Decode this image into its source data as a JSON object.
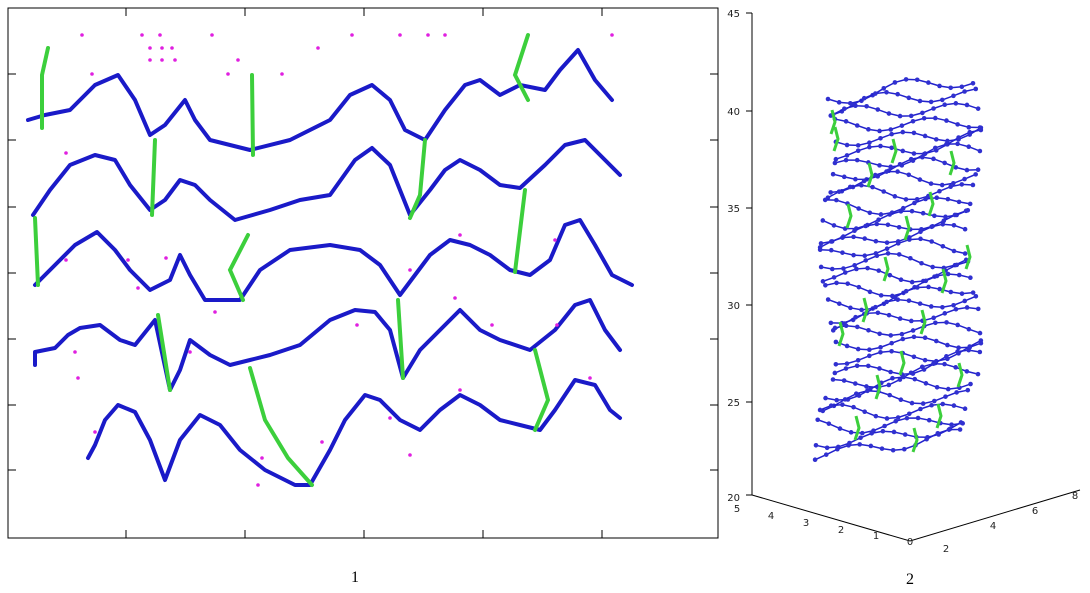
{
  "panels": [
    {
      "label": "1"
    },
    {
      "label": "2",
      "z_ticks": [
        "45",
        "40",
        "35",
        "30",
        "25",
        "20"
      ],
      "x_ticks": [
        "5",
        "4",
        "3",
        "2",
        "1",
        "0"
      ],
      "y_ticks": [
        "2",
        "4",
        "6",
        "8"
      ]
    }
  ]
}
